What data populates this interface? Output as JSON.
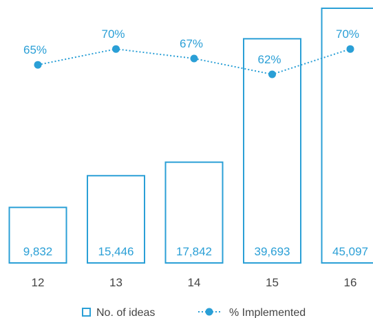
{
  "chart_data": {
    "type": "bar",
    "categories": [
      "12",
      "13",
      "14",
      "15",
      "16"
    ],
    "series": [
      {
        "name": "No. of ideas",
        "type": "bar",
        "values": [
          9832,
          15446,
          17842,
          39693,
          45097
        ],
        "value_labels": [
          "9,832",
          "15,446",
          "17,842",
          "39,693",
          "45,097"
        ]
      },
      {
        "name": "% Implemented",
        "type": "line",
        "values": [
          65,
          70,
          67,
          62,
          70
        ],
        "value_labels": [
          "65%",
          "70%",
          "67%",
          "62%",
          "70%"
        ]
      }
    ],
    "legend": {
      "position": "bottom",
      "entries": [
        "No. of ideas",
        "% Implemented"
      ]
    },
    "grid": false,
    "colors": {
      "accent": "#2a9fd6",
      "text": "#444444"
    }
  }
}
